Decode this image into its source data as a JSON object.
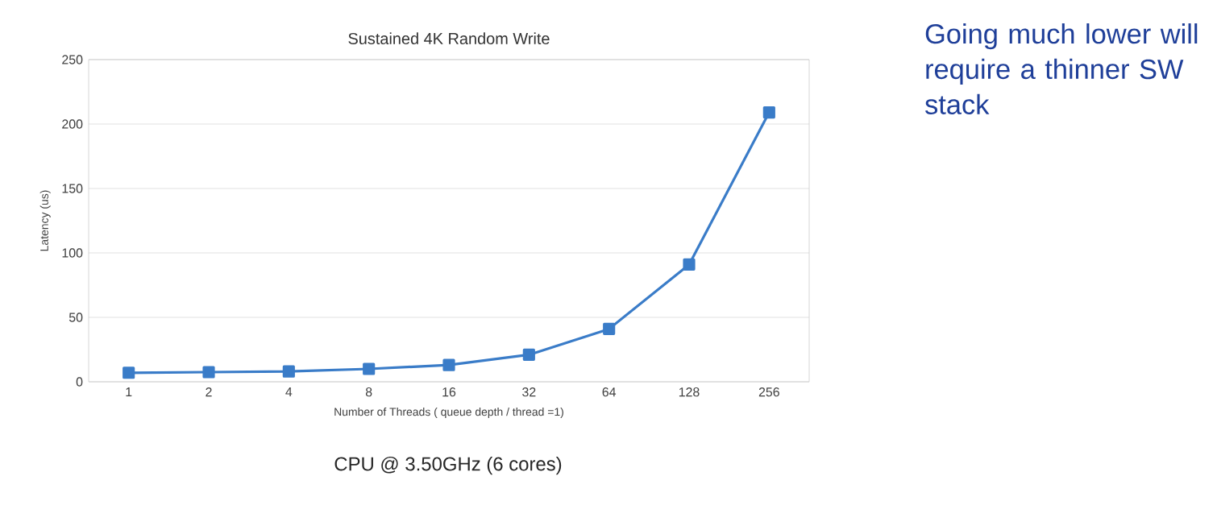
{
  "chart_data": {
    "type": "line",
    "title": "Sustained 4K Random Write",
    "xlabel": "Number of Threads ( queue depth / thread =1)",
    "ylabel": "Latency (us)",
    "categories": [
      "1",
      "2",
      "4",
      "8",
      "16",
      "32",
      "64",
      "128",
      "256"
    ],
    "series": [
      {
        "color": "#3a7cc8",
        "values": [
          7,
          7.5,
          8,
          10,
          13,
          21,
          41,
          91,
          209
        ]
      }
    ],
    "ylim": [
      0,
      250
    ],
    "yticks": [
      0,
      50,
      100,
      150,
      200,
      250
    ],
    "grid": "y",
    "marker": "square",
    "line_style": "solid",
    "annotations": [
      "CPU @ 3.50GHz (6 cores)",
      "Going much lower will require a thinner SW stack"
    ]
  }
}
